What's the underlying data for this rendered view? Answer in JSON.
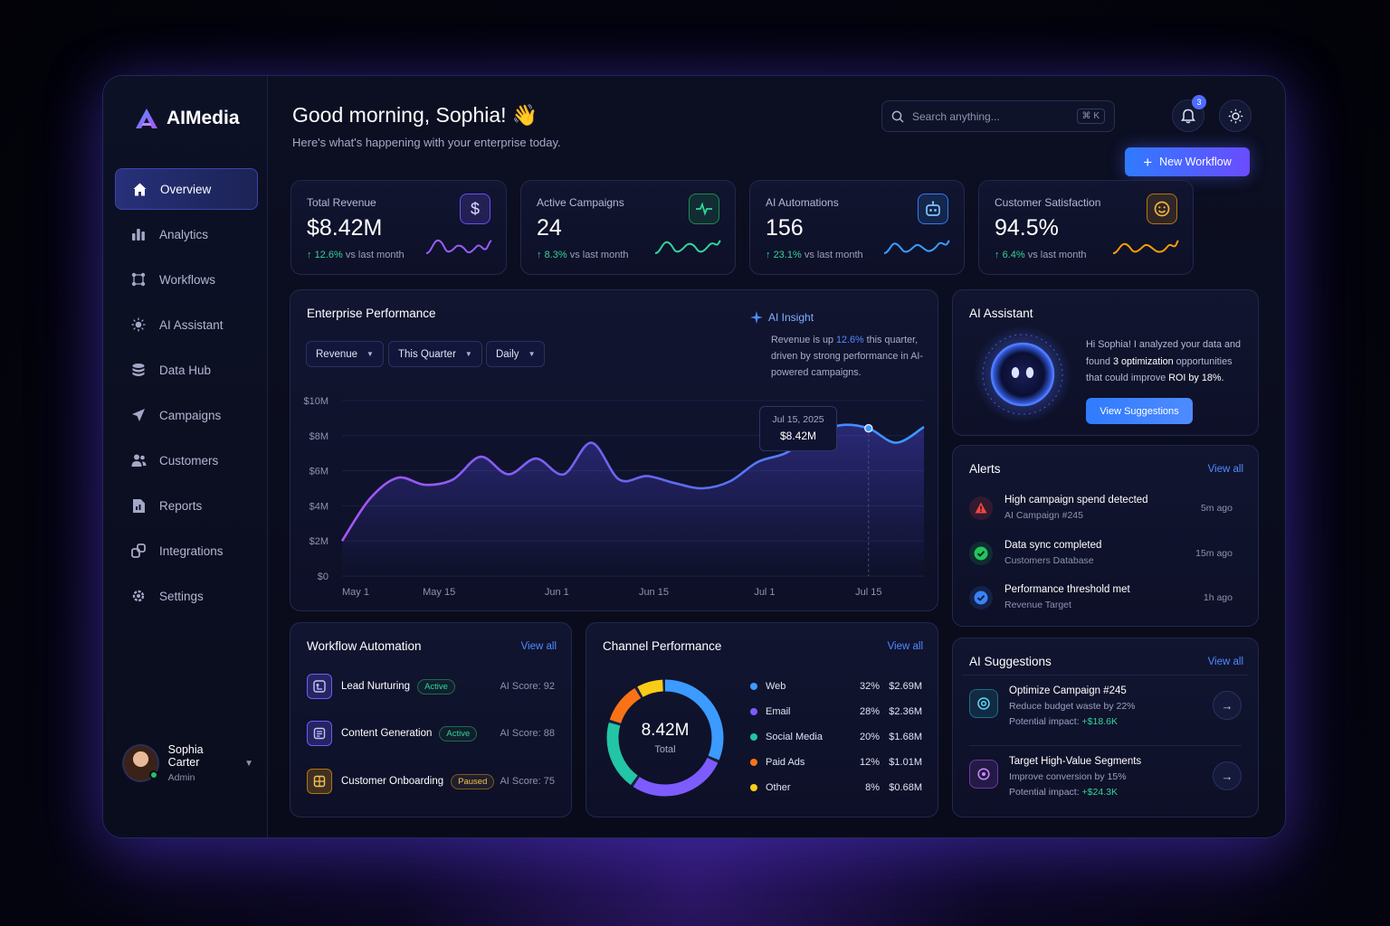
{
  "app": {
    "name": "AIMedia"
  },
  "sidebar": {
    "items": [
      {
        "label": "Overview",
        "icon": "home-icon",
        "active": true
      },
      {
        "label": "Analytics",
        "icon": "bar-chart-icon"
      },
      {
        "label": "Workflows",
        "icon": "workflow-icon"
      },
      {
        "label": "AI Assistant",
        "icon": "sparkle-icon"
      },
      {
        "label": "Data Hub",
        "icon": "database-icon"
      },
      {
        "label": "Campaigns",
        "icon": "send-icon"
      },
      {
        "label": "Customers",
        "icon": "users-icon"
      },
      {
        "label": "Reports",
        "icon": "report-icon"
      },
      {
        "label": "Integrations",
        "icon": "integrations-icon"
      },
      {
        "label": "Settings",
        "icon": "gear-icon"
      }
    ],
    "user": {
      "name": "Sophia Carter",
      "role": "Admin"
    }
  },
  "header": {
    "greeting": "Good morning, Sophia! 👋",
    "subtitle": "Here's what's happening with your enterprise today.",
    "search_placeholder": "Search anything...",
    "search_shortcut": "⌘ K",
    "notifications_count": "3",
    "new_workflow_label": "New Workflow"
  },
  "kpis": [
    {
      "label": "Total Revenue",
      "value": "$8.42M",
      "delta": "12.6%",
      "delta_suffix": "vs last month",
      "color": "#9b5cff"
    },
    {
      "label": "Active Campaigns",
      "value": "24",
      "delta": "8.3%",
      "delta_suffix": "vs last month",
      "color": "#34d399"
    },
    {
      "label": "AI Automations",
      "value": "156",
      "delta": "23.1%",
      "delta_suffix": "vs last month",
      "color": "#3b9bff"
    },
    {
      "label": "Customer Satisfaction",
      "value": "94.5%",
      "delta": "6.4%",
      "delta_suffix": "vs last month",
      "color": "#f59e0b"
    }
  ],
  "performance": {
    "title": "Enterprise Performance",
    "filters": [
      "Revenue",
      "This Quarter",
      "Daily"
    ],
    "insight": {
      "title": "AI Insight",
      "text_before": "Revenue is up ",
      "highlight": "12.6%",
      "text_after": " this quarter, driven by strong performance in AI-powered campaigns."
    },
    "tooltip": {
      "date": "Jul 15, 2025",
      "value": "$8.42M"
    }
  },
  "chart_data": {
    "type": "area",
    "x": [
      "May 1",
      "May 5",
      "May 9",
      "May 13",
      "May 17",
      "May 21",
      "May 25",
      "May 29",
      "Jun 2",
      "Jun 6",
      "Jun 10",
      "Jun 14",
      "Jun 18",
      "Jun 22",
      "Jun 26",
      "Jun 30",
      "Jul 4",
      "Jul 8",
      "Jul 12",
      "Jul 15",
      "Jul 18",
      "Jul 21"
    ],
    "values": [
      2.0,
      4.4,
      5.6,
      5.2,
      5.5,
      6.8,
      5.8,
      6.7,
      5.8,
      7.6,
      5.5,
      5.7,
      5.3,
      5.0,
      5.4,
      6.5,
      7.0,
      8.0,
      8.6,
      8.42,
      7.6,
      8.5
    ],
    "x_ticks": [
      "May 1",
      "May 15",
      "Jun 1",
      "Jun 15",
      "Jul 1",
      "Jul 15"
    ],
    "y_ticks": [
      "$0",
      "$2M",
      "$4M",
      "$6M",
      "$8M",
      "$10M"
    ],
    "ylim": [
      0,
      10
    ],
    "grid": true
  },
  "workflow": {
    "title": "Workflow Automation",
    "view_all": "View all",
    "items": [
      {
        "name": "Lead Nurturing",
        "status": "Active",
        "score": "AI Score: 92",
        "color": "#6a5cff",
        "icon": "workflow-node-icon"
      },
      {
        "name": "Content Generation",
        "status": "Active",
        "score": "AI Score: 88",
        "color": "#6a5cff",
        "icon": "document-icon"
      },
      {
        "name": "Customer Onboarding",
        "status": "Paused",
        "score": "AI Score: 75",
        "color": "#f59e0b",
        "icon": "grid-icon"
      }
    ]
  },
  "channels": {
    "title": "Channel Performance",
    "view_all": "View all",
    "total_value": "8.42M",
    "total_label": "Total",
    "items": [
      {
        "name": "Web",
        "pct": "32%",
        "value": "$2.69M",
        "share": 32,
        "color": "#3b9bff"
      },
      {
        "name": "Email",
        "pct": "28%",
        "value": "$2.36M",
        "share": 28,
        "color": "#7c5cff"
      },
      {
        "name": "Social Media",
        "pct": "20%",
        "value": "$1.68M",
        "share": 20,
        "color": "#22c5a5"
      },
      {
        "name": "Paid Ads",
        "pct": "12%",
        "value": "$1.01M",
        "share": 12,
        "color": "#f97316"
      },
      {
        "name": "Other",
        "pct": "8%",
        "value": "$0.68M",
        "share": 8,
        "color": "#facc15"
      }
    ]
  },
  "assistant": {
    "title": "AI Assistant",
    "text_1": "Hi Sophia! I analyzed your data and found ",
    "bold_1": "3 optimization",
    "text_2": " opportunities that could improve ",
    "bold_2": "ROI by 18%.",
    "button": "View Suggestions"
  },
  "alerts": {
    "title": "Alerts",
    "view_all": "View all",
    "items": [
      {
        "title": "High campaign spend detected",
        "sub": "AI Campaign #245",
        "time": "5m ago",
        "color": "#ef4444",
        "icon": "warning-icon"
      },
      {
        "title": "Data sync completed",
        "sub": "Customers Database",
        "time": "15m ago",
        "color": "#22c55e",
        "icon": "check-icon"
      },
      {
        "title": "Performance threshold met",
        "sub": "Revenue Target",
        "time": "1h ago",
        "color": "#3b82f6",
        "icon": "check-badge-icon"
      }
    ]
  },
  "suggestions": {
    "title": "AI Suggestions",
    "view_all": "View all",
    "items": [
      {
        "title": "Optimize Campaign #245",
        "sub": "Reduce budget waste by 22%",
        "impact_label": "Potential impact:",
        "impact": "+$18.6K",
        "color": "#22d3ee",
        "icon": "target-icon"
      },
      {
        "title": "Target High-Value Segments",
        "sub": "Improve conversion by 15%",
        "impact_label": "Potential impact:",
        "impact": "+$24.3K",
        "color": "#a855f7",
        "icon": "segments-icon"
      }
    ]
  }
}
